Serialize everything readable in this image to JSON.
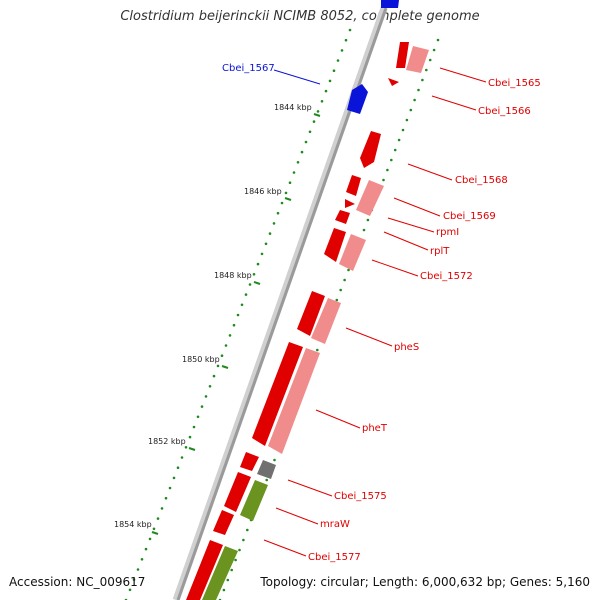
{
  "title": "Clostridium beijerinckii NCIMB 8052, complete genome",
  "footer": {
    "accession": "Accession: NC_009617",
    "summary": "Topology: circular; Length: 6,000,632 bp; Genes: 5,160"
  },
  "colors": {
    "backbone": "#999999",
    "tick": "#1f8a1f",
    "cds_forward": "#e00000",
    "cds_forward_shade": "#f08c8c",
    "highlight": "#0a14d8",
    "trna": "#707070",
    "other_gene": "#6a9320"
  },
  "tick_labels": [
    "1844 kbp",
    "1846 kbp",
    "1848 kbp",
    "1850 kbp",
    "1852 kbp",
    "1854 kbp"
  ],
  "gene_labels": [
    {
      "text": "Cbei_1567",
      "color": "#0a14d8"
    },
    {
      "text": "Cbei_1565",
      "color": "#e00000"
    },
    {
      "text": "Cbei_1566",
      "color": "#e00000"
    },
    {
      "text": "Cbei_1568",
      "color": "#e00000"
    },
    {
      "text": "Cbei_1569",
      "color": "#e00000"
    },
    {
      "text": "rpmI",
      "color": "#e00000"
    },
    {
      "text": "rplT",
      "color": "#e00000"
    },
    {
      "text": "Cbei_1572",
      "color": "#e00000"
    },
    {
      "text": "pheS",
      "color": "#e00000"
    },
    {
      "text": "pheT",
      "color": "#e00000"
    },
    {
      "text": "Cbei_1575",
      "color": "#e00000"
    },
    {
      "text": "mraW",
      "color": "#e00000"
    },
    {
      "text": "Cbei_1577",
      "color": "#e00000"
    }
  ]
}
